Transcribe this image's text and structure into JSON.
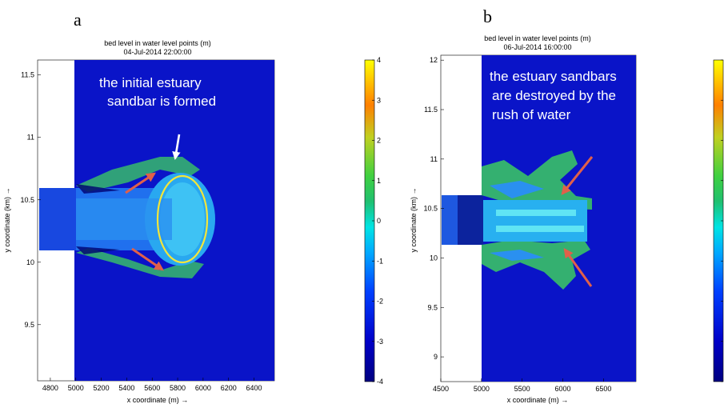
{
  "panels": [
    {
      "letter": "a",
      "chart_data": {
        "type": "heatmap",
        "title": "bed level in water level points (m)",
        "subtitle": "04-Jul-2014 22:00:00",
        "xlabel": "x coordinate (m) →",
        "ylabel": "y coordinate (km) →",
        "xlim": [
          4700,
          6560
        ],
        "ylim": [
          9.05,
          11.62
        ],
        "xticks": [
          4800,
          5000,
          5200,
          5400,
          5600,
          5800,
          6000,
          6200,
          6400
        ],
        "xtick_labels": [
          "4800",
          "5000",
          "5200",
          "5400",
          "5600",
          "5800",
          "6000",
          "6200",
          "6400"
        ],
        "yticks": [
          9.5,
          10,
          10.5,
          11,
          11.5
        ],
        "ytick_labels": [
          "9.5",
          "10",
          "10.5",
          "11",
          "11.5"
        ],
        "colorbar": {
          "min": -4,
          "max": 4,
          "ticks": [
            -4,
            -3,
            -2,
            -1,
            0,
            1,
            2,
            3,
            4
          ],
          "tick_labels": [
            "-4",
            "-3",
            "-2",
            "-1",
            "0",
            "1",
            "2",
            "3",
            "4"
          ]
        },
        "annotation": "the initial estuary sandbar is formed",
        "annotation_lines": [
          "the initial estuary",
          "sandbar is formed"
        ]
      }
    },
    {
      "letter": "b",
      "chart_data": {
        "type": "heatmap",
        "title": "bed level in water level points (m)",
        "subtitle": "06-Jul-2014 16:00:00",
        "xlabel": "x coordinate (m) →",
        "ylabel": "y coordinate (km) →",
        "xlim": [
          4500,
          6900
        ],
        "ylim": [
          8.75,
          12.05
        ],
        "xticks": [
          4500,
          5000,
          5500,
          6000,
          6500
        ],
        "xtick_labels": [
          "4500",
          "5000",
          "5500",
          "6000",
          "6500"
        ],
        "yticks": [
          9,
          9.5,
          10,
          10.5,
          11,
          11.5,
          12
        ],
        "ytick_labels": [
          "9",
          "9.5",
          "10",
          "10.5",
          "11",
          "11.5",
          "12"
        ],
        "colorbar": {
          "min": -4,
          "max": 4,
          "ticks": [
            -4,
            -3,
            -2,
            -1,
            0,
            1,
            2,
            3,
            4
          ],
          "tick_labels": []
        },
        "annotation": "the estuary sandbars are destroyed by the rush of water",
        "annotation_lines": [
          "the estuary sandbars",
          "are destroyed by the",
          "rush of water"
        ]
      }
    }
  ],
  "colors": {
    "background_water": "#0a14c8",
    "annotation_text": "#ffffff",
    "highlight_ellipse": "#f2e63a",
    "arrow_red": "#e0604a",
    "arrow_white": "#ffffff"
  }
}
